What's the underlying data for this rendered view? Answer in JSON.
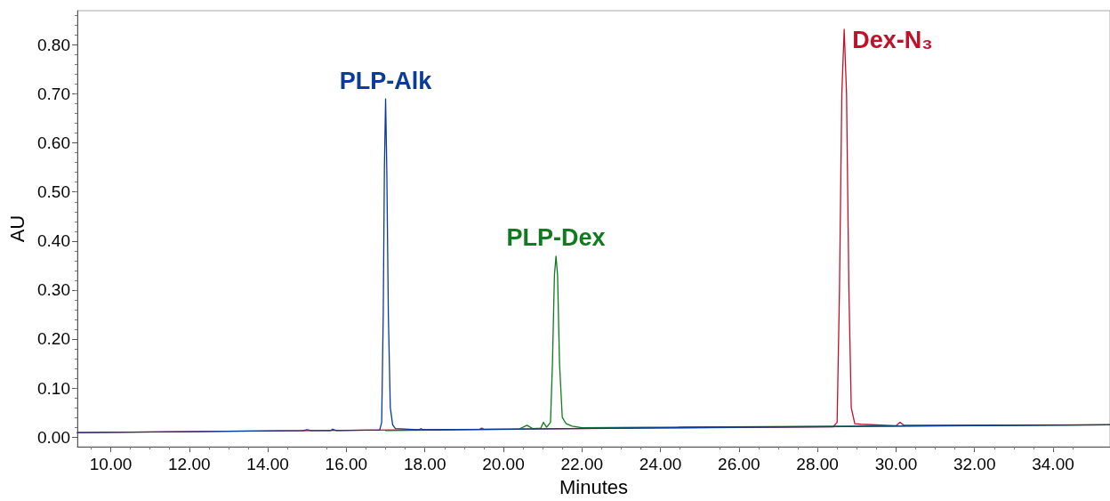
{
  "chart_data": {
    "type": "line",
    "xlabel": "Minutes",
    "ylabel": "AU",
    "xlim": [
      9.15,
      35.45
    ],
    "ylim": [
      -0.02,
      0.87
    ],
    "xticks": [
      {
        "value": 10,
        "label": "10.00"
      },
      {
        "value": 12,
        "label": "12.00"
      },
      {
        "value": 14,
        "label": "14.00"
      },
      {
        "value": 16,
        "label": "16.00"
      },
      {
        "value": 18,
        "label": "18.00"
      },
      {
        "value": 20,
        "label": "20.00"
      },
      {
        "value": 22,
        "label": "22.00"
      },
      {
        "value": 24,
        "label": "24.00"
      },
      {
        "value": 26,
        "label": "26.00"
      },
      {
        "value": 28,
        "label": "28.00"
      },
      {
        "value": 30,
        "label": "30.00"
      },
      {
        "value": 32,
        "label": "32.00"
      },
      {
        "value": 34,
        "label": "34.00"
      }
    ],
    "yticks": [
      {
        "value": 0,
        "label": "0.00"
      },
      {
        "value": 0.1,
        "label": "0.10"
      },
      {
        "value": 0.2,
        "label": "0.20"
      },
      {
        "value": 0.3,
        "label": "0.30"
      },
      {
        "value": 0.4,
        "label": "0.40"
      },
      {
        "value": 0.5,
        "label": "0.50"
      },
      {
        "value": 0.6,
        "label": "0.60"
      },
      {
        "value": 0.7,
        "label": "0.70"
      },
      {
        "value": 0.8,
        "label": "0.80"
      }
    ],
    "grid": false,
    "legend": false,
    "marker": "none",
    "line_style": "solid",
    "series": [
      {
        "name": "PLP-Alk",
        "color": "#0a3a9a",
        "x": [
          9.15,
          12,
          14.9,
          15,
          15.1,
          15.6,
          15.65,
          15.75,
          16.5,
          16.85,
          16.9,
          16.94,
          16.97,
          17,
          17.03,
          17.07,
          17.12,
          17.18,
          17.25,
          17.85,
          17.9,
          17.95,
          20,
          24,
          28,
          32,
          35.45
        ],
        "values": [
          0.009,
          0.011,
          0.013,
          0.015,
          0.013,
          0.013,
          0.016,
          0.013,
          0.014,
          0.014,
          0.03,
          0.25,
          0.55,
          0.69,
          0.55,
          0.25,
          0.06,
          0.025,
          0.017,
          0.015,
          0.017,
          0.015,
          0.016,
          0.019,
          0.021,
          0.023,
          0.025
        ]
      },
      {
        "name": "PLP-Dex",
        "color": "#0f7a1e",
        "x": [
          17,
          20.4,
          20.6,
          20.75,
          20.95,
          21.02,
          21.1,
          21.2,
          21.25,
          21.3,
          21.34,
          21.38,
          21.43,
          21.5,
          21.6,
          21.75,
          22,
          35.45
        ],
        "values": [
          0.013,
          0.016,
          0.024,
          0.017,
          0.018,
          0.03,
          0.02,
          0.03,
          0.15,
          0.33,
          0.369,
          0.33,
          0.15,
          0.04,
          0.027,
          0.022,
          0.019,
          0.025
        ]
      },
      {
        "name": "Dex-N₃",
        "color": "#c0102a",
        "x": [
          9.15,
          19.4,
          19.45,
          19.5,
          28.4,
          28.5,
          28.56,
          28.62,
          28.68,
          28.74,
          28.8,
          28.86,
          28.95,
          29.1,
          30,
          30.1,
          30.2,
          35.45
        ],
        "values": [
          0.009,
          0.016,
          0.018,
          0.016,
          0.021,
          0.03,
          0.3,
          0.7,
          0.832,
          0.7,
          0.3,
          0.06,
          0.027,
          0.026,
          0.023,
          0.03,
          0.024,
          0.025
        ]
      }
    ]
  }
}
